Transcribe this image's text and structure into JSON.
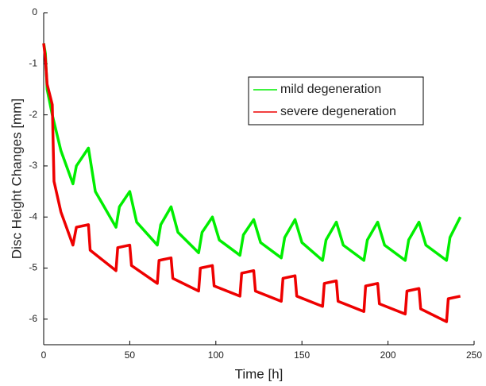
{
  "chart_data": {
    "type": "line",
    "xlabel": "Time [h]",
    "ylabel": "Disc Height Changes [mm]",
    "xlim": [
      0,
      250
    ],
    "xticks": [
      0,
      50,
      100,
      150,
      200,
      250
    ],
    "ylim": [
      -6.5,
      0
    ],
    "yticks": [
      -6,
      -5,
      -4,
      -3,
      -2,
      -1,
      0
    ],
    "grid": false,
    "legend": "upper right",
    "series": [
      {
        "name": "mild degeneration",
        "color": "#00ee00",
        "x": [
          0,
          1,
          2,
          5,
          10,
          17,
          19,
          26,
          30,
          42,
          44,
          50,
          54,
          66,
          68,
          74,
          78,
          90,
          92,
          98,
          102,
          114,
          116,
          122,
          126,
          138,
          140,
          146,
          150,
          162,
          164,
          170,
          174,
          186,
          188,
          194,
          198,
          210,
          212,
          218,
          222,
          234,
          236,
          242
        ],
        "values": [
          -0.6,
          -0.8,
          -1.5,
          -2.0,
          -2.7,
          -3.35,
          -3.0,
          -2.65,
          -3.5,
          -4.2,
          -3.8,
          -3.5,
          -4.1,
          -4.55,
          -4.15,
          -3.8,
          -4.3,
          -4.7,
          -4.3,
          -4.0,
          -4.45,
          -4.75,
          -4.35,
          -4.05,
          -4.5,
          -4.8,
          -4.4,
          -4.05,
          -4.5,
          -4.85,
          -4.45,
          -4.1,
          -4.55,
          -4.85,
          -4.45,
          -4.1,
          -4.55,
          -4.85,
          -4.45,
          -4.1,
          -4.55,
          -4.85,
          -4.4,
          -4.0
        ]
      },
      {
        "name": "severe degeneration",
        "color": "#ee0000",
        "x": [
          0,
          1,
          2,
          5,
          6,
          10,
          17,
          19,
          26,
          27,
          42,
          43,
          50,
          51,
          66,
          67,
          74,
          75,
          90,
          91,
          98,
          99,
          114,
          115,
          122,
          123,
          138,
          139,
          146,
          147,
          162,
          163,
          170,
          171,
          186,
          187,
          194,
          195,
          210,
          211,
          218,
          219,
          234,
          235,
          242
        ],
        "values": [
          -0.6,
          -0.9,
          -1.4,
          -1.8,
          -3.3,
          -3.9,
          -4.55,
          -4.2,
          -4.15,
          -4.65,
          -5.05,
          -4.6,
          -4.55,
          -4.95,
          -5.3,
          -4.85,
          -4.8,
          -5.2,
          -5.45,
          -5.0,
          -4.95,
          -5.35,
          -5.55,
          -5.1,
          -5.05,
          -5.45,
          -5.65,
          -5.2,
          -5.15,
          -5.55,
          -5.75,
          -5.3,
          -5.25,
          -5.65,
          -5.85,
          -5.35,
          -5.3,
          -5.7,
          -5.9,
          -5.45,
          -5.4,
          -5.8,
          -6.05,
          -5.6,
          -5.55
        ]
      }
    ]
  }
}
